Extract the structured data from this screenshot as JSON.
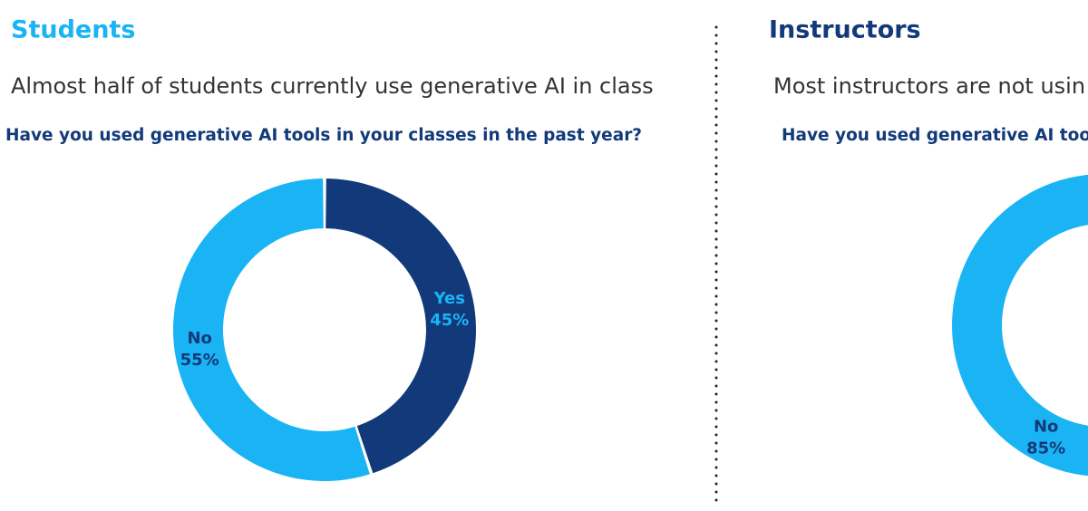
{
  "chart_data": [
    {
      "type": "donut",
      "title": "Students",
      "title_color": "#1ab4f5",
      "subtitle": "Almost half of students currently use generative AI in class",
      "question": "Have you used generative AI tools in your classes in the past year?",
      "categories": [
        "Yes",
        "No"
      ],
      "values": [
        45,
        55
      ],
      "value_labels": [
        "45%",
        "55%"
      ],
      "colors": [
        "#123a7a",
        "#1ab4f5"
      ],
      "label_colors": [
        "#1ab4f5",
        "#123a7a"
      ]
    },
    {
      "type": "donut",
      "title": "Instructors",
      "title_color": "#123a7a",
      "subtitle": "Most instructors are not usin",
      "question": "Have you used generative AI too",
      "categories": [
        "No"
      ],
      "values": [
        85
      ],
      "value_labels": [
        "85%"
      ],
      "colors": [
        "#1ab4f5"
      ],
      "label_colors": [
        "#123a7a"
      ]
    }
  ]
}
